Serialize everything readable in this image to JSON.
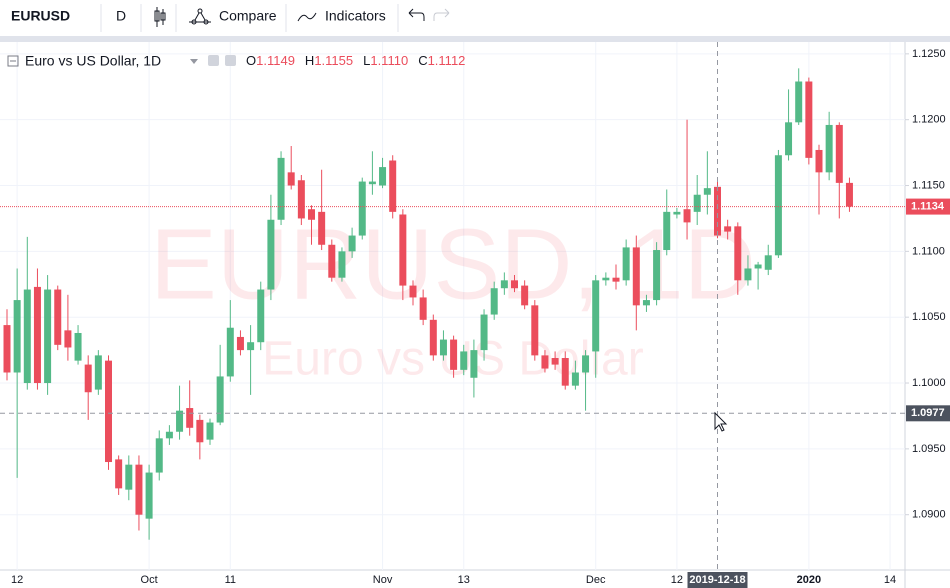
{
  "toolbar": {
    "symbol": "EURUSD",
    "interval": "D",
    "compare": "Compare",
    "indicators": "Indicators"
  },
  "chart_data": {
    "type": "candlestick",
    "legend": {
      "title": "Euro vs US Dollar, 1D",
      "ohlc": [
        {
          "key": "O",
          "value": "1.1149"
        },
        {
          "key": "H",
          "value": "1.1155"
        },
        {
          "key": "L",
          "value": "1.1110"
        },
        {
          "key": "C",
          "value": "1.1112"
        }
      ]
    },
    "watermark": {
      "symbol": "EURUSD, 1D",
      "description": "Euro vs US Dollar"
    },
    "up_color": "#53b987",
    "down_color": "#eb4d5c",
    "categories": [
      null,
      "12",
      null,
      null,
      null,
      null,
      null,
      null,
      null,
      null,
      null,
      null,
      null,
      null,
      "Oct",
      null,
      null,
      null,
      null,
      null,
      null,
      null,
      "11",
      null,
      null,
      null,
      null,
      null,
      null,
      null,
      null,
      null,
      null,
      null,
      null,
      null,
      null,
      "Nov",
      null,
      null,
      null,
      null,
      null,
      null,
      null,
      "13",
      null,
      null,
      null,
      null,
      null,
      null,
      null,
      null,
      null,
      null,
      null,
      null,
      "Dec",
      null,
      null,
      null,
      null,
      null,
      null,
      null,
      "12",
      null,
      null,
      null,
      "2019-12-18",
      null,
      null,
      null,
      null,
      null,
      null,
      null,
      null,
      "2020",
      null,
      null,
      null,
      null,
      null,
      null,
      null,
      "14"
    ],
    "open": [
      1.1044,
      1.1008,
      1.1,
      1.1073,
      1.1,
      1.1071,
      1.104,
      1.1017,
      1.1014,
      1.0995,
      1.1017,
      1.0942,
      1.0919,
      1.0938,
      1.0897,
      1.0932,
      1.0958,
      1.0963,
      1.0981,
      1.0972,
      1.0957,
      1.097,
      1.1005,
      1.1035,
      1.1025,
      1.1031,
      1.1071,
      1.1124,
      1.116,
      1.1154,
      1.1132,
      1.113,
      1.1105,
      1.108,
      1.11,
      1.1112,
      1.1151,
      1.115,
      1.1169,
      1.1128,
      1.1074,
      1.1065,
      1.1048,
      1.1021,
      1.1033,
      1.101,
      1.1004,
      1.1025,
      1.1052,
      1.1072,
      1.1078,
      1.1074,
      1.1059,
      1.1021,
      1.1019,
      1.1019,
      1.0998,
      1.1008,
      1.1024,
      1.1078,
      1.108,
      1.1078,
      1.1103,
      1.1059,
      1.1063,
      1.1101,
      1.1128,
      1.1132,
      1.113,
      1.1143,
      1.1149,
      1.1119,
      1.1119,
      1.1078,
      1.1087,
      1.1086,
      1.1097,
      1.1173,
      1.1198,
      1.1229,
      1.1177,
      1.116,
      1.1196,
      1.1152,
      null,
      null,
      null,
      null
    ],
    "high": [
      1.1056,
      1.1087,
      1.1111,
      1.1087,
      1.1082,
      1.1074,
      1.1067,
      1.1044,
      1.1021,
      1.1025,
      1.1021,
      1.0945,
      1.0945,
      1.0945,
      1.0938,
      1.0964,
      1.0968,
      1.0998,
      1.1002,
      1.0976,
      1.0973,
      1.1029,
      1.1063,
      1.104,
      1.1044,
      1.1077,
      1.1143,
      1.1176,
      1.118,
      1.1158,
      1.1135,
      1.1162,
      1.1109,
      1.1103,
      1.1118,
      1.1156,
      1.1176,
      1.1171,
      1.1173,
      1.1132,
      1.1078,
      1.1071,
      1.1052,
      1.104,
      1.1036,
      1.1029,
      1.1033,
      1.1056,
      1.1077,
      1.1084,
      1.1082,
      1.1078,
      1.1063,
      1.1025,
      1.1024,
      1.1024,
      1.1017,
      1.1025,
      1.1082,
      1.1084,
      1.109,
      1.1109,
      1.1112,
      1.1067,
      1.1107,
      1.1147,
      1.1133,
      1.12,
      1.1158,
      1.1176,
      1.1155,
      1.1124,
      1.1122,
      1.1097,
      1.1092,
      1.1105,
      1.1177,
      1.1223,
      1.1239,
      1.1232,
      1.1181,
      1.1206,
      1.1198,
      1.1156,
      null,
      null,
      null,
      null
    ],
    "low": [
      1.1002,
      1.0928,
      1.0995,
      1.0995,
      1.0991,
      1.1025,
      1.1017,
      1.1014,
      1.0972,
      1.0991,
      1.0934,
      1.0915,
      1.0911,
      1.0888,
      1.0881,
      1.0926,
      1.0953,
      1.0957,
      1.096,
      1.0942,
      1.0953,
      1.0968,
      1.1001,
      1.1021,
      1.0991,
      1.1025,
      1.1063,
      1.112,
      1.1147,
      1.112,
      1.1105,
      1.1101,
      1.1077,
      1.1077,
      1.1095,
      1.1109,
      1.1143,
      1.1148,
      1.1125,
      1.1063,
      1.1059,
      1.1044,
      1.1017,
      1.1017,
      1.1004,
      1.1006,
      1.0989,
      1.1017,
      1.1048,
      1.1067,
      1.1069,
      1.1056,
      1.1017,
      1.1008,
      1.101,
      1.0995,
      1.0995,
      1.0979,
      1.1004,
      1.1074,
      1.1071,
      1.1074,
      1.104,
      1.1054,
      1.1059,
      1.1097,
      1.1125,
      1.1109,
      1.112,
      1.1128,
      1.111,
      1.1109,
      1.1067,
      1.1074,
      1.1071,
      1.1082,
      1.1095,
      1.1169,
      1.1196,
      1.1166,
      1.1128,
      1.1154,
      1.1125,
      1.113,
      null,
      null,
      null,
      null
    ],
    "close": [
      1.1008,
      1.1063,
      1.1071,
      1.1,
      1.1071,
      1.1029,
      1.1027,
      1.1038,
      1.0993,
      1.1021,
      1.094,
      1.092,
      1.0938,
      1.09,
      1.0932,
      1.0958,
      1.0963,
      1.0979,
      1.0966,
      1.0955,
      1.097,
      1.1005,
      1.1042,
      1.1025,
      1.1031,
      1.1071,
      1.1124,
      1.1171,
      1.115,
      1.1125,
      1.1124,
      1.1105,
      1.108,
      1.11,
      1.1112,
      1.1153,
      1.1153,
      1.1164,
      1.113,
      1.1074,
      1.1065,
      1.1048,
      1.1021,
      1.1033,
      1.101,
      1.1024,
      1.1025,
      1.1052,
      1.1072,
      1.1078,
      1.1072,
      1.1059,
      1.1021,
      1.1011,
      1.1014,
      1.0998,
      1.1008,
      1.1021,
      1.1078,
      1.108,
      1.1077,
      1.1103,
      1.1059,
      1.1063,
      1.1101,
      1.113,
      1.113,
      1.1122,
      1.1143,
      1.1148,
      1.1112,
      1.1115,
      1.1078,
      1.1087,
      1.109,
      1.1097,
      1.1173,
      1.1198,
      1.1229,
      1.1171,
      1.116,
      1.1196,
      1.1152,
      1.1134,
      null,
      null,
      null,
      null
    ],
    "ylim": [
      1.0858,
      1.1259
    ],
    "yticks": [
      {
        "value": 1.09,
        "label": "1.0900"
      },
      {
        "value": 1.095,
        "label": "1.0950"
      },
      {
        "value": 1.1,
        "label": "1.1000"
      },
      {
        "value": 1.105,
        "label": "1.1050"
      },
      {
        "value": 1.11,
        "label": "1.1100"
      },
      {
        "value": 1.115,
        "label": "1.1150"
      },
      {
        "value": 1.12,
        "label": "1.1200"
      },
      {
        "value": 1.125,
        "label": "1.1250"
      }
    ],
    "last_price": 1.1134,
    "crosshair_price": 1.0977,
    "grid": true
  }
}
